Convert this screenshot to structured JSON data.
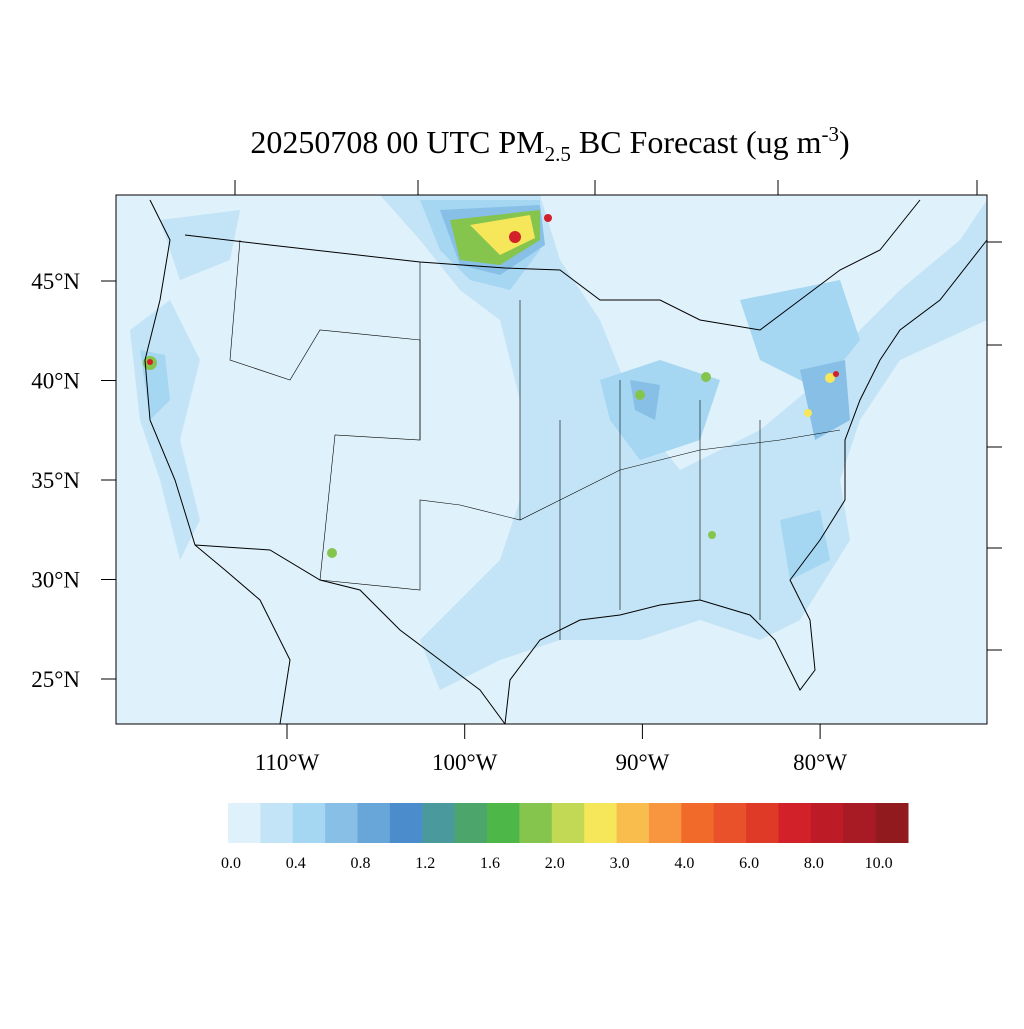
{
  "title": {
    "parts": [
      "20250708 00 UTC PM",
      "2.5",
      " BC Forecast (ug m",
      "-3",
      ")"
    ]
  },
  "lat_labels": [
    "45°N",
    "40°N",
    "35°N",
    "30°N",
    "25°N"
  ],
  "lon_labels": [
    "110°W",
    "100°W",
    "90°W",
    "80°W"
  ],
  "colorbar": {
    "colors": [
      "#dff1fa",
      "#c3e4f6",
      "#a5d6f2",
      "#87bfe6",
      "#68a6d9",
      "#4b8ccc",
      "#4a9a9d",
      "#4ca56a",
      "#4db848",
      "#86c54d",
      "#c2d955",
      "#f6e65a",
      "#f8bd4c",
      "#f7963f",
      "#f26a2a",
      "#e9512b",
      "#df3a28",
      "#d22128",
      "#bd1c27",
      "#a81a24",
      "#901a1e"
    ],
    "labels": [
      "0.0",
      "0.4",
      "0.8",
      "1.2",
      "1.6",
      "2.0",
      "3.0",
      "4.0",
      "6.0",
      "8.0",
      "10.0"
    ]
  }
}
